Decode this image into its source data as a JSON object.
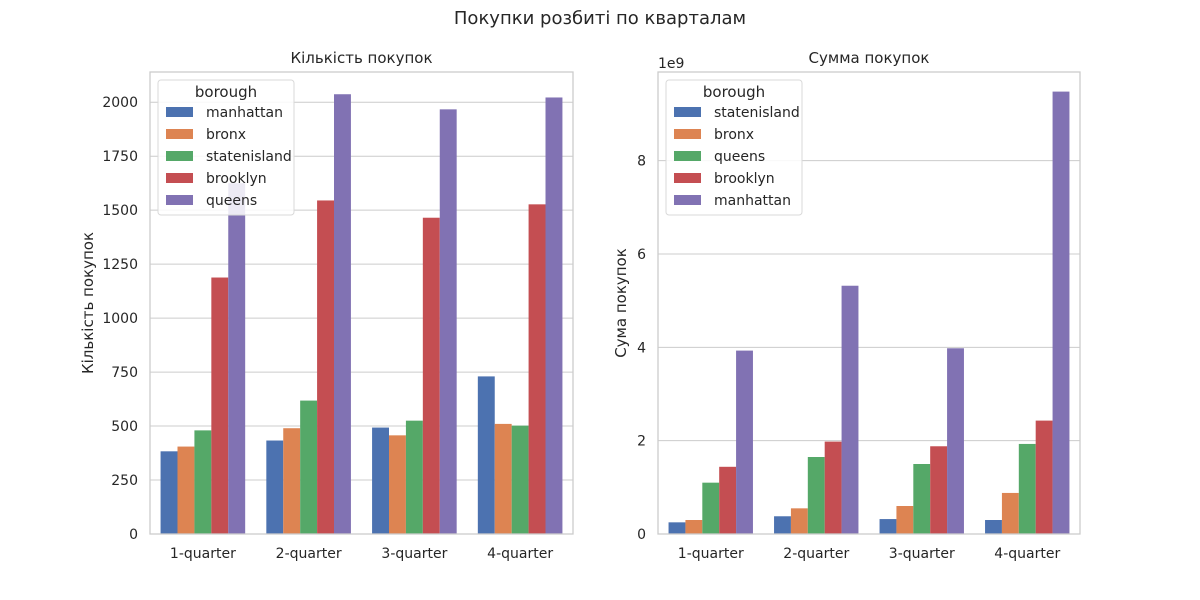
{
  "figure": {
    "suptitle": "Покупки розбиті по кварталам"
  },
  "chart_data": [
    {
      "type": "bar",
      "title": "Кількість покупок",
      "xlabel": "",
      "ylabel": "Кількість покупок",
      "ylim": [
        0,
        2140
      ],
      "yticks": [
        0,
        250,
        500,
        750,
        1000,
        1250,
        1500,
        1750,
        2000
      ],
      "categories": [
        "1-quarter",
        "2-quarter",
        "3-quarter",
        "4-quarter"
      ],
      "grid": true,
      "legend": {
        "title": "borough",
        "placement": "top-left"
      },
      "series": [
        {
          "name": "manhattan",
          "color": "#4c72b0",
          "values": [
            383,
            433,
            493,
            730
          ]
        },
        {
          "name": "bronx",
          "color": "#dd8452",
          "values": [
            405,
            490,
            457,
            510
          ]
        },
        {
          "name": "statenisland",
          "color": "#55a868",
          "values": [
            480,
            618,
            525,
            502
          ]
        },
        {
          "name": "brooklyn",
          "color": "#c44e52",
          "values": [
            1188,
            1545,
            1465,
            1527
          ]
        },
        {
          "name": "queens",
          "color": "#8172b3",
          "values": [
            1625,
            2037,
            1967,
            2022
          ]
        }
      ]
    },
    {
      "type": "bar",
      "title": "Сумма покупок",
      "xlabel": "",
      "ylabel": "Сума покупок",
      "y_scale_label": "1e9",
      "ylim": [
        0,
        9.9
      ],
      "yticks": [
        0,
        2,
        4,
        6,
        8
      ],
      "categories": [
        "1-quarter",
        "2-quarter",
        "3-quarter",
        "4-quarter"
      ],
      "grid": true,
      "legend": {
        "title": "borough",
        "placement": "top-left"
      },
      "series": [
        {
          "name": "statenisland",
          "color": "#4c72b0",
          "values": [
            0.25,
            0.38,
            0.32,
            0.3
          ]
        },
        {
          "name": "bronx",
          "color": "#dd8452",
          "values": [
            0.3,
            0.55,
            0.6,
            0.88
          ]
        },
        {
          "name": "queens",
          "color": "#55a868",
          "values": [
            1.1,
            1.65,
            1.5,
            1.93
          ]
        },
        {
          "name": "brooklyn",
          "color": "#c44e52",
          "values": [
            1.44,
            1.98,
            1.88,
            2.43
          ]
        },
        {
          "name": "manhattan",
          "color": "#8172b3",
          "values": [
            3.93,
            5.32,
            3.98,
            9.48
          ]
        }
      ]
    }
  ]
}
